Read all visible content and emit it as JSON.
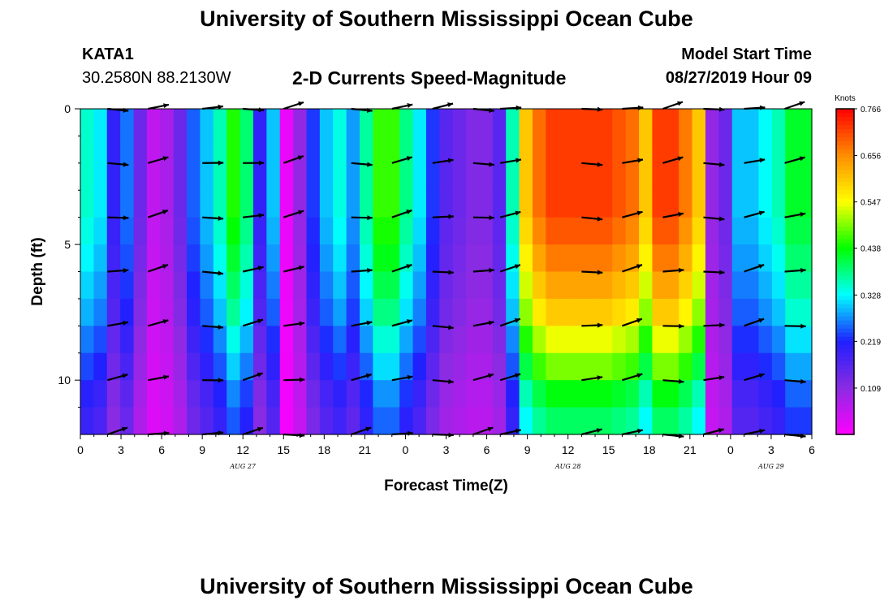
{
  "header": {
    "title": "University of Southern Mississippi Ocean Cube",
    "station_id": "KATA1",
    "station_coords": "30.2580N 88.2130W",
    "chart_title": "2-D Currents Speed-Magnitude",
    "model_label": "Model Start Time",
    "model_time": "08/27/2019 Hour 09"
  },
  "footer": {
    "title": "University of Southern Mississippi Ocean Cube"
  },
  "colors": {
    "colormap": [
      "#ff00ff",
      "#8a2be2",
      "#2020ff",
      "#00ffff",
      "#00ff00",
      "#ffff00",
      "#ff8c00",
      "#ff0000"
    ],
    "arrow": "#000000",
    "frame": "#000000"
  },
  "chart_data": {
    "type": "heatmap",
    "title": "2-D Currents Speed-Magnitude",
    "xlabel": "Forecast Time(Z)",
    "ylabel": "Depth (ft)",
    "x_ticks": [
      "0",
      "3",
      "6",
      "9",
      "12",
      "15",
      "18",
      "21",
      "0",
      "3",
      "6",
      "9",
      "12",
      "15",
      "18",
      "21",
      "0",
      "3",
      "6"
    ],
    "x_range_hours": [
      0,
      54
    ],
    "date_labels": [
      {
        "text": "AUG 27",
        "hour": 12
      },
      {
        "text": "AUG 28",
        "hour": 36
      },
      {
        "text": "AUG 29",
        "hour": 51
      }
    ],
    "y_ticks": [
      {
        "value": 0,
        "label": "0"
      },
      {
        "value": 5,
        "label": "5"
      },
      {
        "value": 10,
        "label": "10"
      }
    ],
    "y_range_ft": [
      0,
      12
    ],
    "colorbar": {
      "unit": "Knots",
      "range": [
        0.0,
        0.766
      ],
      "labels": [
        "0.766",
        "0.656",
        "0.547",
        "0.438",
        "0.328",
        "0.219",
        "0.109"
      ]
    },
    "column_hours": [
      0,
      1,
      2,
      3,
      4,
      5,
      6,
      7,
      8,
      9,
      10,
      11,
      12,
      13,
      14,
      15,
      16,
      17,
      18,
      19,
      20,
      21,
      22,
      23,
      24,
      25,
      26,
      27,
      28,
      29,
      30,
      31,
      32,
      33,
      34,
      35,
      36,
      37,
      38,
      39,
      40,
      41,
      42,
      43,
      44,
      45,
      46,
      47,
      48,
      49,
      50,
      51,
      52,
      53,
      54
    ],
    "speed_profile_knots": [
      0.35,
      0.32,
      0.2,
      0.26,
      0.14,
      0.06,
      0.08,
      0.14,
      0.25,
      0.3,
      0.36,
      0.45,
      0.39,
      0.2,
      0.3,
      0.02,
      0.1,
      0.23,
      0.3,
      0.34,
      0.28,
      0.37,
      0.46,
      0.46,
      0.38,
      0.32,
      0.23,
      0.16,
      0.14,
      0.12,
      0.12,
      0.16,
      0.36,
      0.6,
      0.68,
      0.72,
      0.72,
      0.72,
      0.72,
      0.72,
      0.7,
      0.68,
      0.6,
      0.72,
      0.72,
      0.67,
      0.6,
      0.1,
      0.14,
      0.3,
      0.3,
      0.33,
      0.36,
      0.42,
      0.42
    ],
    "depth_factors": [
      1.0,
      1.0,
      1.0,
      1.0,
      0.97,
      0.93,
      0.88,
      0.83,
      0.75,
      0.68,
      0.6,
      0.55
    ],
    "vectors": {
      "depths_ft": [
        0,
        2,
        4,
        6,
        8,
        10,
        12
      ],
      "hours": [
        2,
        5,
        9,
        12,
        15,
        20,
        23,
        26,
        29,
        31,
        37,
        40,
        43,
        46,
        49,
        52
      ],
      "direction": "mostly eastward"
    }
  }
}
